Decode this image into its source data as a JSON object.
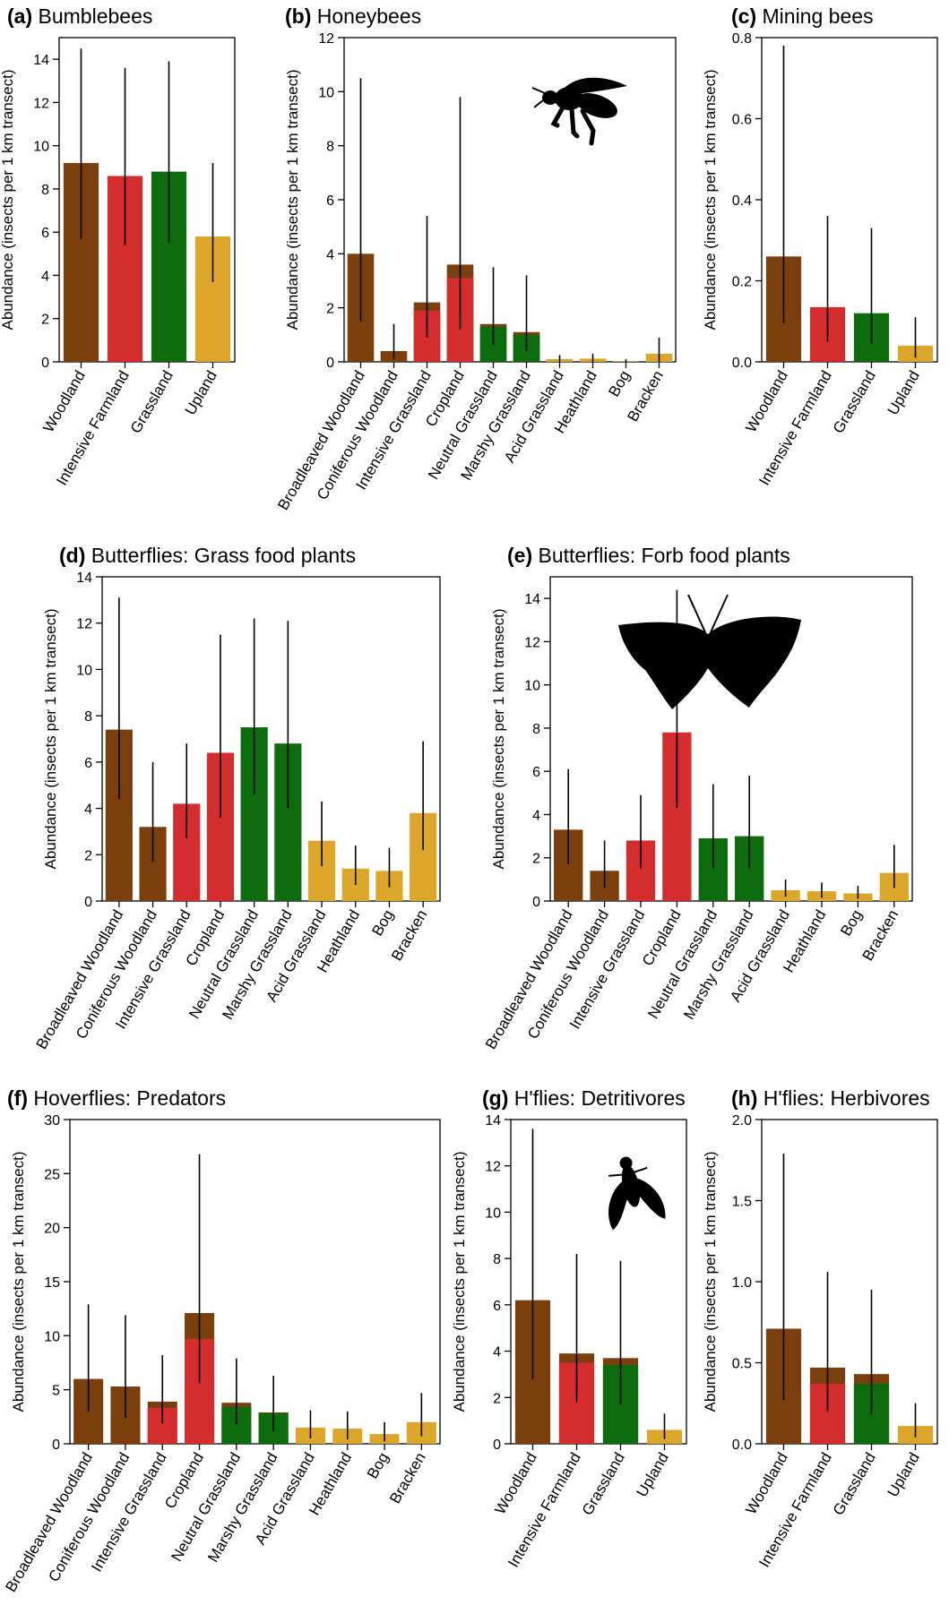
{
  "colors": {
    "woodland": "#7b3f0d",
    "farmland": "#d42d2d",
    "grassland": "#0c6b0c",
    "upland": "#dca62a"
  },
  "chart_data": [
    {
      "id": "a",
      "type": "bar",
      "tag": "(a)",
      "title": "Bumblebees",
      "ylabel": "Abundance (insects per 1 km transect)",
      "ylim": [
        0,
        15
      ],
      "yticks": [
        0,
        2,
        4,
        6,
        8,
        10,
        12,
        14
      ],
      "categories": [
        "Woodland",
        "Intensive Farmland",
        "Grassland",
        "Upland"
      ],
      "values": [
        9.2,
        8.6,
        8.8,
        5.8
      ],
      "inner_values": [
        null,
        null,
        null,
        null
      ],
      "error_low": [
        5.7,
        5.4,
        5.5,
        3.7
      ],
      "error_high": [
        14.5,
        13.6,
        13.9,
        9.2
      ],
      "bar_colors": [
        "woodland",
        "farmland",
        "grassland",
        "upland"
      ]
    },
    {
      "id": "b",
      "type": "bar",
      "tag": "(b)",
      "title": "Honeybees",
      "ylabel": "Abundance (insects per 1 km transect)",
      "ylim": [
        0,
        12
      ],
      "yticks": [
        0,
        2,
        4,
        6,
        8,
        10,
        12
      ],
      "categories": [
        "Broadleaved Woodland",
        "Coniferous Woodland",
        "Intensive Grassland",
        "Cropland",
        "Neutral Grassland",
        "Marshy Grassland",
        "Acid Grassland",
        "Heathland",
        "Bog",
        "Bracken"
      ],
      "values": [
        4.0,
        0.4,
        2.2,
        3.6,
        1.4,
        1.1,
        0.1,
        0.12,
        0.02,
        0.3
      ],
      "inner_values": [
        null,
        null,
        1.9,
        3.1,
        1.3,
        1.0,
        null,
        null,
        null,
        null
      ],
      "error_low": [
        1.5,
        0.1,
        0.9,
        1.2,
        0.6,
        0.4,
        0.0,
        0.0,
        0.0,
        0.0
      ],
      "error_high": [
        10.5,
        1.4,
        5.4,
        9.8,
        3.5,
        3.2,
        0.25,
        0.3,
        0.1,
        0.9
      ],
      "bar_colors": [
        "woodland",
        "woodland",
        "farmland",
        "farmland",
        "grassland",
        "grassland",
        "upland",
        "upland",
        "upland",
        "upland"
      ],
      "silhouette": "bee"
    },
    {
      "id": "c",
      "type": "bar",
      "tag": "(c)",
      "title": "Mining bees",
      "ylabel": "Abundance (insects per 1 km transect)",
      "ylim": [
        0,
        0.8
      ],
      "yticks": [
        0.0,
        0.2,
        0.4,
        0.6,
        0.8
      ],
      "categories": [
        "Woodland",
        "Intensive Farmland",
        "Grassland",
        "Upland"
      ],
      "values": [
        0.26,
        0.135,
        0.12,
        0.04
      ],
      "inner_values": [
        null,
        null,
        null,
        null
      ],
      "error_low": [
        0.095,
        0.05,
        0.045,
        0.01
      ],
      "error_high": [
        0.78,
        0.36,
        0.33,
        0.11
      ],
      "bar_colors": [
        "woodland",
        "farmland",
        "grassland",
        "upland"
      ]
    },
    {
      "id": "d",
      "type": "bar",
      "tag": "(d)",
      "title": "Butterflies: Grass food plants",
      "ylabel": "Abundance (insects per 1 km transect)",
      "ylim": [
        0,
        14
      ],
      "yticks": [
        0,
        2,
        4,
        6,
        8,
        10,
        12,
        14
      ],
      "categories": [
        "Broadleaved Woodland",
        "Coniferous Woodland",
        "Intensive Grassland",
        "Cropland",
        "Neutral Grassland",
        "Marshy Grassland",
        "Acid Grassland",
        "Heathland",
        "Bog",
        "Bracken"
      ],
      "values": [
        7.4,
        3.2,
        4.2,
        6.4,
        7.5,
        6.8,
        2.6,
        1.4,
        1.3,
        3.8
      ],
      "inner_values": [
        null,
        null,
        null,
        null,
        null,
        null,
        null,
        null,
        null,
        null
      ],
      "error_low": [
        4.4,
        1.7,
        2.7,
        3.6,
        4.6,
        4.0,
        1.5,
        0.7,
        0.6,
        2.2
      ],
      "error_high": [
        13.1,
        6.0,
        6.8,
        11.5,
        12.2,
        12.1,
        4.3,
        2.4,
        2.3,
        6.9
      ],
      "bar_colors": [
        "woodland",
        "woodland",
        "farmland",
        "farmland",
        "grassland",
        "grassland",
        "upland",
        "upland",
        "upland",
        "upland"
      ]
    },
    {
      "id": "e",
      "type": "bar",
      "tag": "(e)",
      "title": "Butterflies: Forb food plants",
      "ylabel": "Abundance (insects per 1 km transect)",
      "ylim": [
        0,
        15
      ],
      "yticks": [
        0,
        2,
        4,
        6,
        8,
        10,
        12,
        14
      ],
      "categories": [
        "Broadleaved Woodland",
        "Coniferous Woodland",
        "Intensive Grassland",
        "Cropland",
        "Neutral Grassland",
        "Marshy Grassland",
        "Acid Grassland",
        "Heathland",
        "Bog",
        "Bracken"
      ],
      "values": [
        3.3,
        1.4,
        2.8,
        7.8,
        2.9,
        3.0,
        0.5,
        0.45,
        0.35,
        1.3
      ],
      "inner_values": [
        null,
        null,
        null,
        null,
        null,
        null,
        null,
        null,
        null,
        null
      ],
      "error_low": [
        1.7,
        0.6,
        1.5,
        4.3,
        1.5,
        1.5,
        0.2,
        0.15,
        0.1,
        0.6
      ],
      "error_high": [
        6.1,
        2.8,
        4.9,
        14.4,
        5.4,
        5.8,
        1.0,
        0.85,
        0.7,
        2.6
      ],
      "bar_colors": [
        "woodland",
        "woodland",
        "farmland",
        "farmland",
        "grassland",
        "grassland",
        "upland",
        "upland",
        "upland",
        "upland"
      ],
      "silhouette": "butterfly"
    },
    {
      "id": "f",
      "type": "bar",
      "tag": "(f)",
      "title": "Hoverflies: Predators",
      "ylabel": "Abundance (insects per 1 km transect)",
      "ylim": [
        0,
        30
      ],
      "yticks": [
        0,
        5,
        10,
        15,
        20,
        25,
        30
      ],
      "categories": [
        "Broadleaved Woodland",
        "Coniferous Woodland",
        "Intensive Grassland",
        "Cropland",
        "Neutral Grassland",
        "Marshy Grassland",
        "Acid Grassland",
        "Heathland",
        "Bog",
        "Bracken"
      ],
      "values": [
        6.0,
        5.3,
        3.9,
        12.1,
        3.8,
        2.9,
        1.5,
        1.4,
        0.9,
        2.0
      ],
      "inner_values": [
        null,
        null,
        3.3,
        9.7,
        3.4,
        2.8,
        null,
        null,
        null,
        null
      ],
      "error_low": [
        3.0,
        2.4,
        1.9,
        5.6,
        1.8,
        1.2,
        0.5,
        0.4,
        0.2,
        0.7
      ],
      "error_high": [
        12.9,
        11.9,
        8.2,
        26.8,
        7.9,
        6.3,
        3.1,
        3.0,
        2.0,
        4.7
      ],
      "bar_colors": [
        "woodland",
        "woodland",
        "farmland",
        "farmland",
        "grassland",
        "grassland",
        "upland",
        "upland",
        "upland",
        "upland"
      ]
    },
    {
      "id": "g",
      "type": "bar",
      "tag": "(g)",
      "title": "H'flies: Detritivores",
      "ylabel": "Abundance (insects per 1 km transect)",
      "ylim": [
        0,
        14
      ],
      "yticks": [
        0,
        2,
        4,
        6,
        8,
        10,
        12,
        14
      ],
      "categories": [
        "Woodland",
        "Intensive Farmland",
        "Grassland",
        "Upland"
      ],
      "values": [
        6.2,
        3.9,
        3.7,
        0.6
      ],
      "inner_values": [
        null,
        3.5,
        3.4,
        null
      ],
      "error_low": [
        2.8,
        1.8,
        1.7,
        0.2
      ],
      "error_high": [
        13.6,
        8.2,
        7.9,
        1.3
      ],
      "bar_colors": [
        "woodland",
        "farmland",
        "grassland",
        "upland"
      ],
      "silhouette": "fly"
    },
    {
      "id": "h",
      "type": "bar",
      "tag": "(h)",
      "title": "H'flies: Herbivores",
      "ylabel": "Abundance (insects per 1 km transect)",
      "ylim": [
        0,
        2.0
      ],
      "yticks": [
        0.0,
        0.5,
        1.0,
        1.5,
        2.0
      ],
      "categories": [
        "Woodland",
        "Intensive Farmland",
        "Grassland",
        "Upland"
      ],
      "values": [
        0.71,
        0.47,
        0.43,
        0.11
      ],
      "inner_values": [
        null,
        0.37,
        0.37,
        null
      ],
      "error_low": [
        0.27,
        0.2,
        0.18,
        0.04
      ],
      "error_high": [
        1.79,
        1.06,
        0.95,
        0.25
      ],
      "bar_colors": [
        "woodland",
        "farmland",
        "grassland",
        "upland"
      ]
    }
  ]
}
